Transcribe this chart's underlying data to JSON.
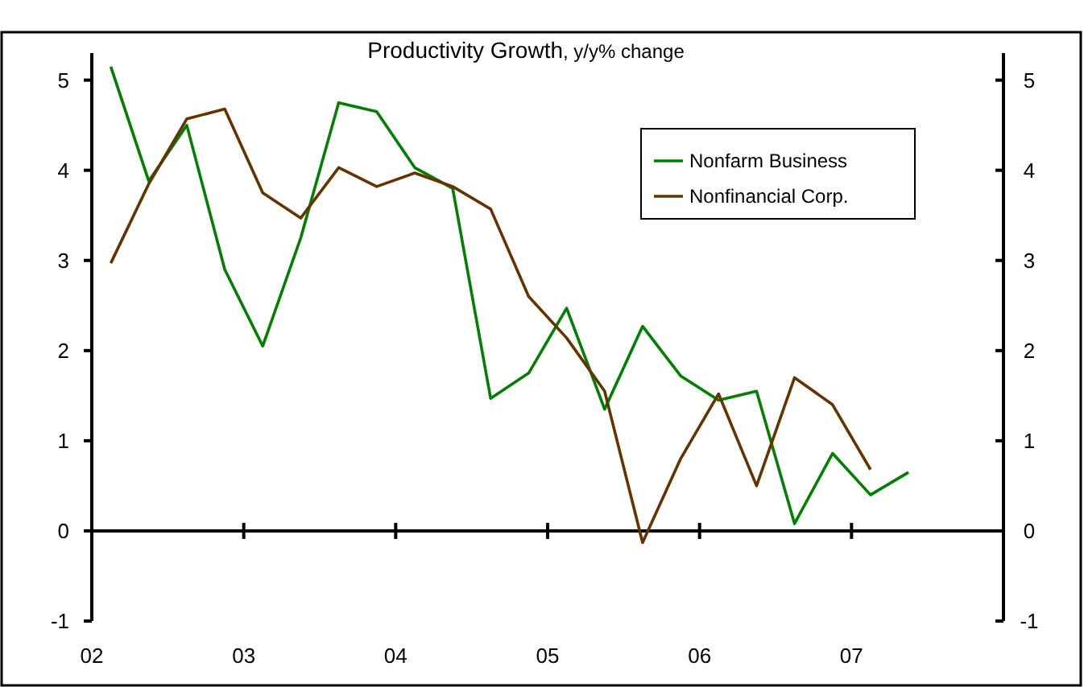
{
  "chart_data": {
    "type": "line",
    "title": "Productivity Growth",
    "subtitle": ", y/y% change",
    "xlim": [
      2002,
      2008
    ],
    "xticks": [
      {
        "value": 2002,
        "label": "02"
      },
      {
        "value": 2003,
        "label": "03"
      },
      {
        "value": 2004,
        "label": "04"
      },
      {
        "value": 2005,
        "label": "05"
      },
      {
        "value": 2006,
        "label": "06"
      },
      {
        "value": 2007,
        "label": "07"
      }
    ],
    "ylim": [
      -1,
      5.3
    ],
    "yticks": [
      -1,
      0,
      1,
      2,
      3,
      4,
      5
    ],
    "y2lim": [
      -1,
      5.3
    ],
    "y2ticks": [
      -1,
      0,
      1,
      2,
      3,
      4,
      5
    ],
    "legend": "top right",
    "line_style": "solid",
    "series": [
      {
        "name": "Nonfarm Business",
        "color": "#008000",
        "x": [
          2002.125,
          2002.375,
          2002.625,
          2002.875,
          2003.125,
          2003.375,
          2003.625,
          2003.875,
          2004.125,
          2004.375,
          2004.625,
          2004.875,
          2005.125,
          2005.375,
          2005.625,
          2005.875,
          2006.125,
          2006.375,
          2006.625,
          2006.875,
          2007.125,
          2007.375
        ],
        "values": [
          5.15,
          3.88,
          4.5,
          2.9,
          2.05,
          3.25,
          4.75,
          4.65,
          4.03,
          3.8,
          1.47,
          1.75,
          2.47,
          1.35,
          2.27,
          1.72,
          1.45,
          1.55,
          0.08,
          0.86,
          0.4,
          0.65
        ]
      },
      {
        "name": "Nonfinancial Corp.",
        "color": "#663300",
        "x": [
          2002.125,
          2002.375,
          2002.625,
          2002.875,
          2003.125,
          2003.375,
          2003.625,
          2003.875,
          2004.125,
          2004.375,
          2004.625,
          2004.875,
          2005.125,
          2005.375,
          2005.625,
          2005.875,
          2006.125,
          2006.375,
          2006.625,
          2006.875,
          2007.125
        ],
        "values": [
          2.97,
          3.85,
          4.57,
          4.68,
          3.75,
          3.47,
          4.03,
          3.82,
          3.97,
          3.82,
          3.57,
          2.6,
          2.14,
          1.55,
          -0.13,
          0.8,
          1.52,
          0.5,
          1.7,
          1.4,
          0.68
        ]
      }
    ]
  }
}
